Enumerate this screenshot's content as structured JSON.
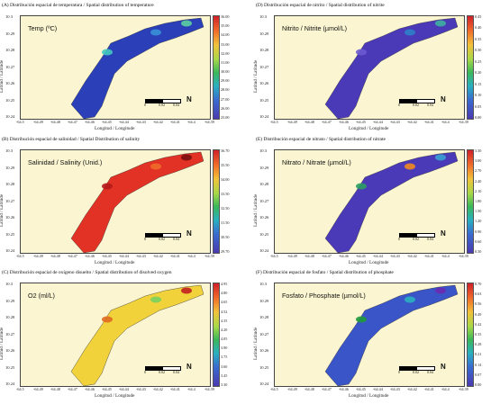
{
  "common": {
    "ylabel": "Latitud / Latitude",
    "xlabel": "Longitud / Longitude",
    "yticks": [
      "10.3",
      "10.29",
      "10.28",
      "10.27",
      "10.26",
      "10.25",
      "10.24"
    ],
    "xticks": [
      "-64.5",
      "-64.49",
      "-64.48",
      "-64.47",
      "-64.46",
      "-64.45",
      "-64.44",
      "-64.43",
      "-64.42",
      "-64.41",
      "-64.4",
      "-64.39"
    ],
    "scale_labels": [
      "0",
      "0.02",
      "0.04"
    ],
    "north_label": "N"
  },
  "panels": [
    {
      "id": "A",
      "title": "(A) Distribución espacial de temperatura / Spatial distribution of  temperature",
      "variable": "Temp (ºC)",
      "colorbar": [
        "36.00",
        "35.00",
        "34.00",
        "33.00",
        "32.00",
        "31.00",
        "30.00",
        "29.00",
        "28.00",
        "27.00",
        "26.00",
        "25.00"
      ],
      "base_color": "#2a3fb8",
      "colormap": "rainbow",
      "spots": [
        {
          "color": "#43c6c0"
        },
        {
          "color": "#3a8fd8"
        },
        {
          "color": "#5bd0a0"
        }
      ]
    },
    {
      "id": "D",
      "title": "(D) Distribución espacial de nitrito / Spatial distribution of nitrite",
      "variable": "Nitrito / Nitrite (µmol/L)",
      "colorbar": [
        "0.45",
        "0.40",
        "0.35",
        "0.30",
        "0.25",
        "0.20",
        "0.15",
        "0.10",
        "0.05",
        "0.00"
      ],
      "base_color": "#4a3ab8",
      "colormap": "rainbow",
      "spots": [
        {
          "color": "#6a5ad0"
        },
        {
          "color": "#2f7fc8"
        },
        {
          "color": "#3fb0a0"
        }
      ]
    },
    {
      "id": "B",
      "title": "(B) Distribución espacial de salinidad / Spatial Distribution of  salinity",
      "variable": "Salinidad / Salinity (Unid.)",
      "colorbar": [
        "36.70",
        "35.50",
        "34.00",
        "33.50",
        "32.50",
        "31.50",
        "30.50",
        "29.70"
      ],
      "base_color": "#e23225",
      "colormap": "rainbow",
      "spots": [
        {
          "color": "#b51a1a"
        },
        {
          "color": "#f06a2a"
        },
        {
          "color": "#7a1010"
        }
      ]
    },
    {
      "id": "E",
      "title": "(E) Distribución espacial de nitrato / Spatial distribution of nitrate",
      "variable": "Nitrato / Nitrate (µmol/L)",
      "colorbar": [
        "3.30",
        "3.00",
        "2.70",
        "2.40",
        "2.10",
        "1.80",
        "1.50",
        "1.20",
        "0.90",
        "0.60",
        "0.30"
      ],
      "base_color": "#4a3ab8",
      "colormap": "rainbow",
      "spots": [
        {
          "color": "#2aa060"
        },
        {
          "color": "#f08a20"
        },
        {
          "color": "#3aa0d0"
        }
      ]
    },
    {
      "id": "C",
      "title": "(C) Distribución espacial de oxígeno disuelto / Spatial distribution of disolved oxygen",
      "variable": "O2 (ml/L)",
      "colorbar": [
        "4.95",
        "4.80",
        "4.65",
        "4.52",
        "4.35",
        "4.20",
        "4.05",
        "3.90",
        "3.75",
        "3.60",
        "3.45",
        "3.30"
      ],
      "base_color": "#f2d23a",
      "colormap": "rainbow",
      "spots": [
        {
          "color": "#e06a20"
        },
        {
          "color": "#7ad060"
        },
        {
          "color": "#c02020"
        }
      ]
    },
    {
      "id": "F",
      "title": "(F) Distribución espacial de fosfato / Spatial distribution of  phosphate",
      "variable": "Fosfato / Phosphate (µmol/L)",
      "colorbar": [
        "0.70",
        "0.63",
        "0.56",
        "0.49",
        "0.42",
        "0.35",
        "0.28",
        "0.21",
        "0.14",
        "0.07",
        "0.00"
      ],
      "base_color": "#3a55c8",
      "colormap": "rainbow",
      "spots": [
        {
          "color": "#1f9a3a"
        },
        {
          "color": "#2ab0c0"
        },
        {
          "color": "#6a2ab0"
        }
      ]
    }
  ]
}
